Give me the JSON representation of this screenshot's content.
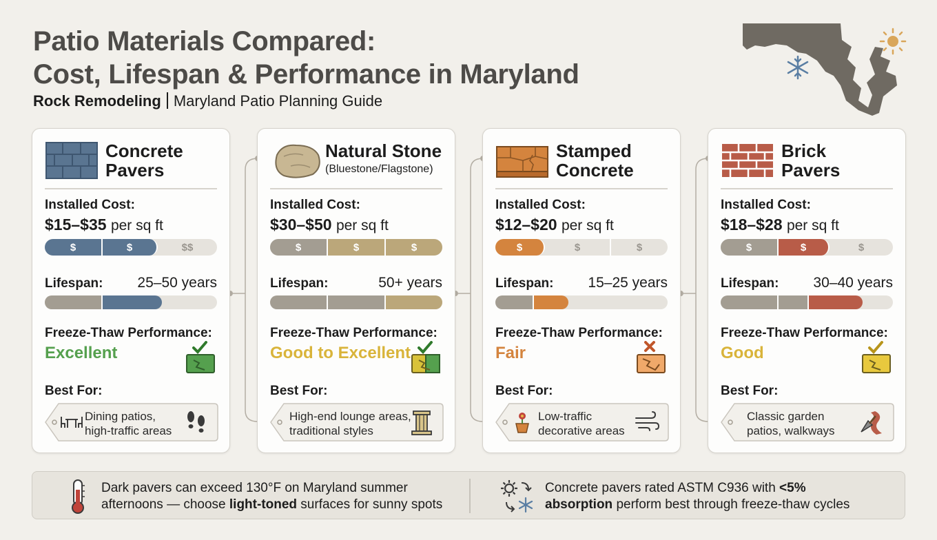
{
  "header": {
    "title_line1": "Patio Materials Compared:",
    "title_line2": "Cost, Lifespan & Performance in Maryland",
    "brand": "Rock Remodeling",
    "guide": "Maryland Patio Planning Guide"
  },
  "labels": {
    "installed_cost": "Installed Cost:",
    "lifespan": "Lifespan:",
    "freeze_thaw": "Freeze-Thaw Performance:",
    "best_for": "Best For:",
    "per_sq_ft": "per sq ft"
  },
  "colors": {
    "concrete": "#5a7591",
    "stone": "#bba77a",
    "stamped": "#d4843e",
    "brick": "#b85c48",
    "gray": "#a39d92",
    "excellent": "#55a04e",
    "good": "#d9b43a",
    "fair": "#d4843e"
  },
  "cards": [
    {
      "name_line1": "Concrete",
      "name_line2": "Pavers",
      "name_sub": "",
      "cost": "$15–$35",
      "cost_bar": [
        "$",
        "$",
        "$$"
      ],
      "lifespan": "25–50 years",
      "freeze_thaw": "Excellent",
      "best_line1": "Dining patios,",
      "best_line2": "high-traffic areas",
      "icon": "paver-grid-icon",
      "best_icon": "footprints-icon"
    },
    {
      "name_line1": "Natural Stone",
      "name_line2": "",
      "name_sub": "(Bluestone/Flagstone)",
      "cost": "$30–$50",
      "cost_bar": [
        "$",
        "$",
        "$"
      ],
      "lifespan": "50+ years",
      "freeze_thaw": "Good to Excellent",
      "best_line1": "High-end lounge areas,",
      "best_line2": "traditional styles",
      "icon": "flagstone-icon",
      "best_icon": "column-icon"
    },
    {
      "name_line1": "Stamped",
      "name_line2": "Concrete",
      "name_sub": "",
      "cost": "$12–$20",
      "cost_bar": [
        "$",
        "$",
        "$"
      ],
      "lifespan": "15–25 years",
      "freeze_thaw": "Fair",
      "best_line1": "Low-traffic",
      "best_line2": "decorative areas",
      "icon": "stamped-slab-icon",
      "best_icon": "wind-icon"
    },
    {
      "name_line1": "Brick",
      "name_line2": "Pavers",
      "name_sub": "",
      "cost": "$18–$28",
      "cost_bar": [
        "$",
        "$",
        "$"
      ],
      "lifespan": "30–40 years",
      "freeze_thaw": "Good",
      "best_line1": "Classic garden",
      "best_line2": "patios, walkways",
      "icon": "brick-wall-icon",
      "best_icon": "trowel-path-icon"
    }
  ],
  "footer": {
    "tip1_line1": "Dark pavers can exceed 130°F on Maryland summer",
    "tip1_line2a": "afternoons — choose ",
    "tip1_bold": "light-toned",
    "tip1_line2b": " surfaces for sunny spots",
    "tip2_line1a": "Concrete pavers rated ASTM C936 with ",
    "tip2_bold1": "<5%",
    "tip2_bold2": "absorption",
    "tip2_line2b": " perform best through freeze-thaw cycles"
  }
}
